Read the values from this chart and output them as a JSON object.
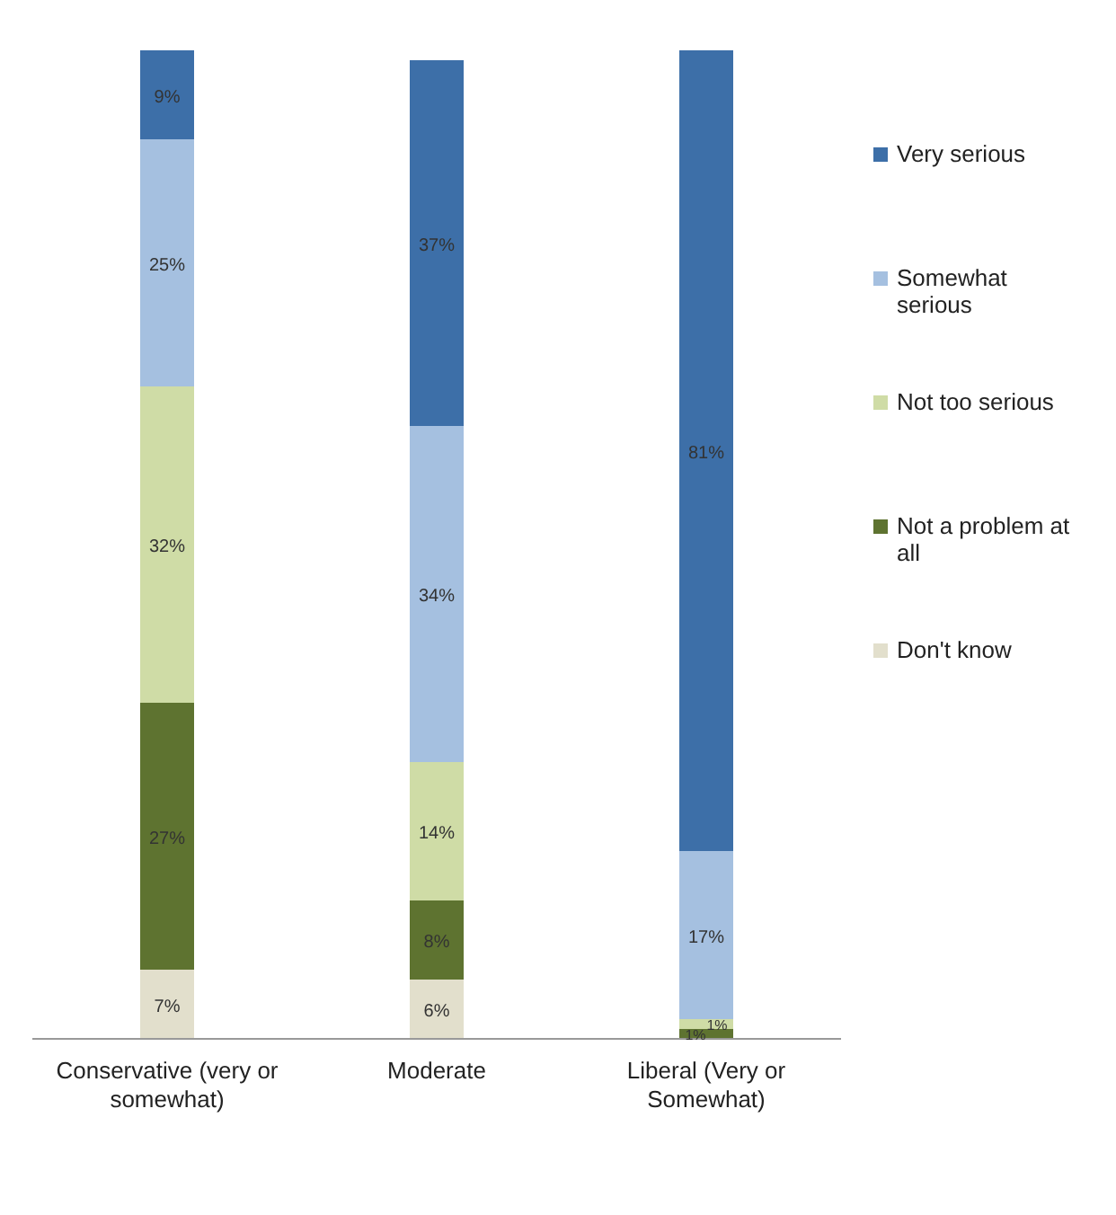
{
  "chart_data": {
    "type": "bar",
    "stacked": true,
    "legend": "right",
    "categories": [
      "Conservative (very or somewhat)",
      "Moderate",
      "Liberal (Very or Somewhat)"
    ],
    "series": [
      {
        "name": "Don't know",
        "color": "#e2dfcc",
        "values": [
          7,
          6,
          0
        ],
        "value_labels": [
          "7%",
          "6%",
          null
        ]
      },
      {
        "name": "Not a problem at all",
        "color": "#5e7330",
        "values": [
          27,
          8,
          1
        ],
        "value_labels": [
          "27%",
          "8%",
          "1%"
        ]
      },
      {
        "name": "Not too serious",
        "color": "#cfdca6",
        "values": [
          32,
          14,
          1
        ],
        "value_labels": [
          "32%",
          "14%",
          "1%"
        ]
      },
      {
        "name": "Somewhat serious",
        "color": "#a5c0e0",
        "values": [
          25,
          34,
          17
        ],
        "value_labels": [
          "25%",
          "34%",
          "17%"
        ]
      },
      {
        "name": "Very serious",
        "color": "#3d6fa8",
        "values": [
          9,
          37,
          81
        ],
        "value_labels": [
          "9%",
          "37%",
          "81%"
        ]
      }
    ]
  }
}
